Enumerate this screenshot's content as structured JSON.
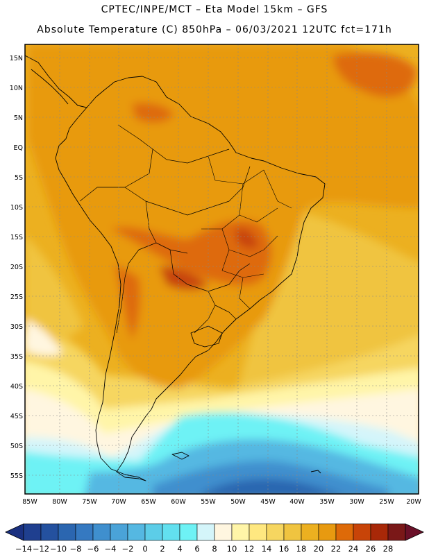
{
  "header": {
    "line1": "CPTEC/INPE/MCT –  Eta Model 15km – GFS",
    "line2": "Absolute Temperature (C) 850hPa – 06/03/2021 12UTC fct=171h"
  },
  "axes": {
    "lat_labels": [
      "15N",
      "10N",
      "5N",
      "EQ",
      "5S",
      "10S",
      "15S",
      "20S",
      "25S",
      "30S",
      "35S",
      "40S",
      "45S",
      "50S",
      "55S"
    ],
    "lon_labels": [
      "85W",
      "80W",
      "75W",
      "70W",
      "65W",
      "60W",
      "55W",
      "50W",
      "45W",
      "40W",
      "35W",
      "30W",
      "25W",
      "20W"
    ]
  },
  "colorbar": {
    "labels": [
      "-14",
      "-12",
      "-10",
      "-8",
      "-6",
      "-4",
      "-2",
      "0",
      "2",
      "4",
      "6",
      "8",
      "10",
      "12",
      "14",
      "16",
      "18",
      "20",
      "22",
      "24",
      "26",
      "28"
    ],
    "colors": [
      "#1f3f8f",
      "#24519f",
      "#2b66b0",
      "#3579c1",
      "#3f8fce",
      "#4aa3d8",
      "#55b8e2",
      "#5ccde8",
      "#62e0ef",
      "#6ef2f5",
      "#d4f5fa",
      "#fff6e0",
      "#fff5a8",
      "#ffe880",
      "#f6d660",
      "#f0c440",
      "#ecb020",
      "#e89a10",
      "#de6a08",
      "#c84408",
      "#a82808",
      "#7a1818"
    ],
    "low_color": "#1a3080",
    "high_color": "#6a1028"
  },
  "map_colors": {
    "warm": "#e89a10",
    "warmer": "#de6a08",
    "hot": "#c84408",
    "mid": "#ecb020",
    "mild": "#f0c440",
    "cool": "#f6d660",
    "pale": "#fff5a8",
    "cream": "#fff6e0",
    "icy": "#d4f5fa",
    "cyan": "#6ef2f5",
    "lblue": "#55b8e2",
    "mblue": "#3f8fce",
    "dblue": "#2b66b0"
  }
}
